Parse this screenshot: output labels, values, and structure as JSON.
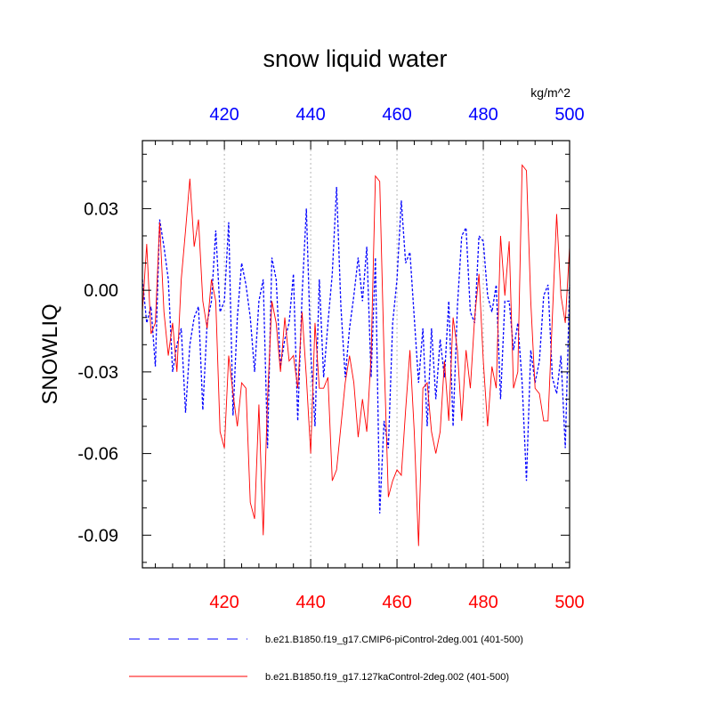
{
  "chart_data": {
    "type": "line",
    "title": "snow liquid water",
    "units": "kg/m^2",
    "ylabel": "SNOWLIQ",
    "xlabel": "",
    "xlim": [
      401,
      500
    ],
    "ylim": [
      -0.102,
      0.055
    ],
    "grid": "x-only dashed",
    "legend_placement": "bottom",
    "x_ticks": [
      420,
      440,
      460,
      480,
      500
    ],
    "y_ticks": [
      0.03,
      0.0,
      -0.03,
      -0.06,
      -0.09
    ],
    "y_tick_labels": [
      "0.03",
      "0.00",
      "-0.03",
      "-0.06",
      "-0.09"
    ],
    "x_tick_labels_top": [
      "420",
      "440",
      "460",
      "480",
      "500"
    ],
    "x_tick_labels_bottom": [
      "420",
      "440",
      "460",
      "480",
      "500"
    ],
    "top_axis_color": "#0000ff",
    "bottom_axis_color": "#ff0000",
    "series": [
      {
        "name": "b.e21.B1850.f19_g17.CMIP6-piControl-2deg.001 (401-500)",
        "color": "#0000ff",
        "dash": "dashed",
        "x_start": 401,
        "values": [
          0.004,
          -0.012,
          -0.006,
          -0.028,
          0.026,
          0.016,
          0.004,
          -0.03,
          -0.02,
          -0.014,
          -0.045,
          -0.02,
          -0.01,
          -0.006,
          -0.044,
          -0.012,
          -0.004,
          0.022,
          -0.008,
          -0.004,
          0.025,
          -0.046,
          -0.01,
          0.01,
          0.002,
          -0.01,
          -0.03,
          -0.004,
          0.004,
          -0.058,
          0.012,
          0.004,
          -0.028,
          -0.018,
          -0.012,
          0.006,
          -0.048,
          -0.002,
          0.03,
          -0.022,
          -0.05,
          0.004,
          -0.032,
          -0.012,
          0.006,
          0.038,
          -0.006,
          -0.032,
          -0.014,
          -0.002,
          0.012,
          -0.004,
          0.016,
          -0.032,
          0.012,
          -0.082,
          -0.048,
          -0.058,
          -0.012,
          0.004,
          0.033,
          0.01,
          0.014,
          -0.01,
          -0.034,
          -0.014,
          -0.05,
          -0.014,
          -0.04,
          -0.018,
          -0.032,
          -0.004,
          -0.05,
          -0.006,
          0.02,
          0.023,
          -0.008,
          -0.012,
          0.02,
          0.018,
          -0.002,
          -0.008,
          0.002,
          -0.04,
          -0.004,
          -0.004,
          -0.022,
          -0.012,
          -0.034,
          -0.07,
          -0.022,
          -0.034,
          -0.026,
          -0.002,
          0.002,
          -0.032,
          -0.038,
          -0.024,
          -0.058,
          0.002
        ]
      },
      {
        "name": "b.e21.B1850.f19_g17.127kaControl-2deg.002 (401-500)",
        "color": "#ff0000",
        "dash": "solid",
        "x_start": 401,
        "values": [
          -0.008,
          0.017,
          -0.016,
          -0.012,
          0.025,
          -0.008,
          -0.024,
          -0.012,
          -0.03,
          0.004,
          0.022,
          0.041,
          0.016,
          0.026,
          -0.004,
          -0.014,
          0.004,
          -0.004,
          -0.052,
          -0.058,
          -0.024,
          -0.038,
          -0.05,
          -0.034,
          -0.036,
          -0.078,
          -0.084,
          -0.042,
          -0.09,
          -0.04,
          -0.004,
          -0.012,
          -0.03,
          -0.01,
          -0.026,
          -0.024,
          -0.036,
          -0.008,
          -0.032,
          -0.06,
          -0.012,
          -0.036,
          -0.036,
          -0.032,
          -0.07,
          -0.066,
          -0.05,
          -0.034,
          -0.024,
          -0.034,
          -0.054,
          -0.04,
          -0.052,
          -0.024,
          0.042,
          0.04,
          -0.024,
          -0.076,
          -0.07,
          -0.066,
          -0.068,
          -0.044,
          -0.022,
          -0.052,
          -0.094,
          -0.036,
          -0.034,
          -0.052,
          -0.06,
          -0.052,
          -0.026,
          -0.048,
          -0.01,
          -0.022,
          -0.048,
          -0.022,
          -0.036,
          -0.01,
          0.006,
          -0.026,
          -0.05,
          -0.028,
          -0.036,
          0.02,
          -0.002,
          0.018,
          -0.036,
          -0.03,
          0.046,
          0.044,
          -0.004,
          -0.036,
          -0.038,
          -0.048,
          -0.048,
          -0.01,
          0.028,
          -0.002,
          -0.012,
          0.016
        ]
      }
    ]
  }
}
